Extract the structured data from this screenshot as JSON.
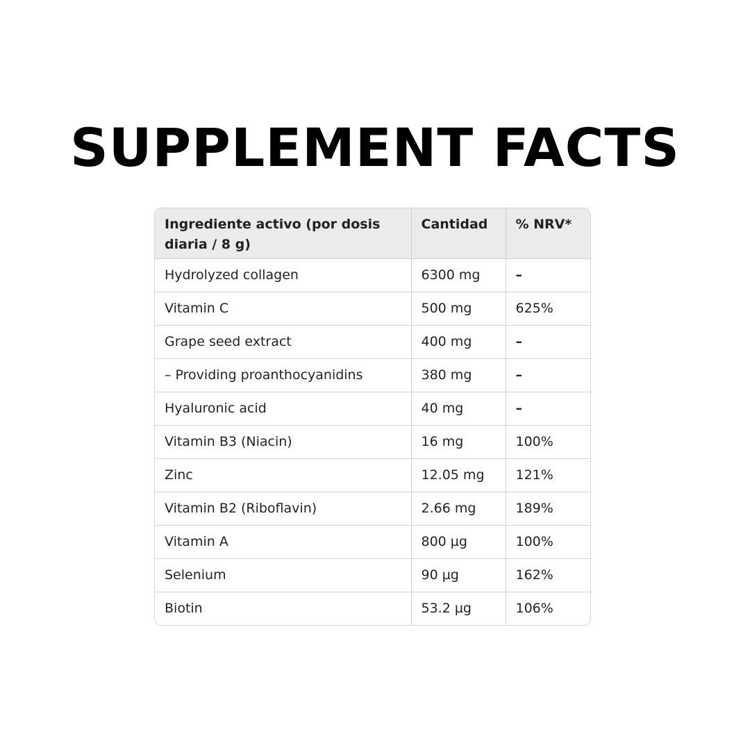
{
  "title": "SUPPLEMENT FACTS",
  "table": {
    "headers": [
      "Ingrediente activo (por dosis diaria / 8 g)",
      "Cantidad",
      "% NRV*"
    ],
    "rows": [
      [
        "Hydrolyzed collagen",
        "6300 mg",
        "–"
      ],
      [
        "Vitamin C",
        "500 mg",
        "625%"
      ],
      [
        "Grape seed extract",
        "400 mg",
        "–"
      ],
      [
        "– Providing proanthocyanidins",
        "380 mg",
        "–"
      ],
      [
        "Hyaluronic acid",
        "40 mg",
        "–"
      ],
      [
        "Vitamin B3 (Niacin)",
        "16 mg",
        "100%"
      ],
      [
        "Zinc",
        "12.05 mg",
        "121%"
      ],
      [
        "Vitamin B2 (Riboflavin)",
        "2.66 mg",
        "189%"
      ],
      [
        "Vitamin A",
        "800 µg",
        "100%"
      ],
      [
        "Selenium",
        "90 µg",
        "162%"
      ],
      [
        "Biotin",
        "53.2 µg",
        "106%"
      ]
    ]
  }
}
